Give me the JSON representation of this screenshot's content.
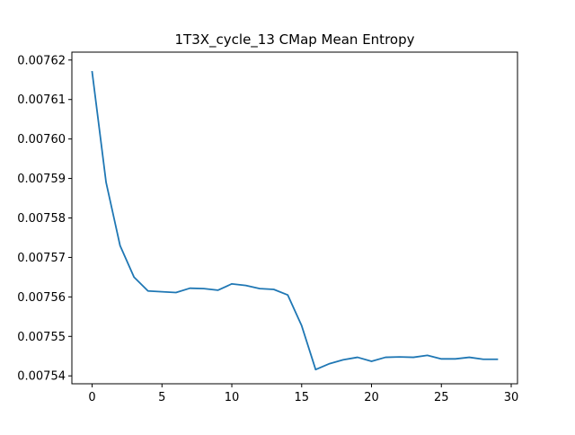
{
  "chart_data": {
    "type": "line",
    "title": "1T3X_cycle_13 CMap Mean Entropy",
    "xlabel": "",
    "ylabel": "",
    "xlim": [
      -1.45,
      30.45
    ],
    "ylim": [
      0.007538,
      0.007622
    ],
    "xticks": [
      0,
      5,
      10,
      15,
      20,
      25,
      30
    ],
    "yticks": [
      0.00754,
      0.00755,
      0.00756,
      0.00757,
      0.00758,
      0.00759,
      0.0076,
      0.00761,
      0.00762
    ],
    "xtick_labels": [
      "0",
      "5",
      "10",
      "15",
      "20",
      "25",
      "30"
    ],
    "ytick_labels": [
      "0.00754",
      "0.00755",
      "0.00756",
      "0.00757",
      "0.00758",
      "0.00759",
      "0.00760",
      "0.00761",
      "0.00762"
    ],
    "grid": false,
    "series": [
      {
        "color": "#1f77b4",
        "x": [
          0,
          1,
          2,
          3,
          4,
          5,
          6,
          7,
          8,
          9,
          10,
          11,
          12,
          13,
          14,
          15,
          16,
          17,
          18,
          19,
          20,
          21,
          22,
          23,
          24,
          25,
          26,
          27,
          28,
          29
        ],
        "y": [
          0.007617,
          0.007589,
          0.007573,
          0.007565,
          0.0075615,
          0.0075613,
          0.0075611,
          0.0075622,
          0.0075621,
          0.0075617,
          0.0075633,
          0.0075629,
          0.0075621,
          0.0075619,
          0.0075605,
          0.0075527,
          0.0075416,
          0.0075431,
          0.0075441,
          0.0075447,
          0.0075437,
          0.0075447,
          0.0075448,
          0.0075447,
          0.0075452,
          0.0075443,
          0.0075443,
          0.0075447,
          0.0075442,
          0.0075442
        ]
      }
    ]
  }
}
